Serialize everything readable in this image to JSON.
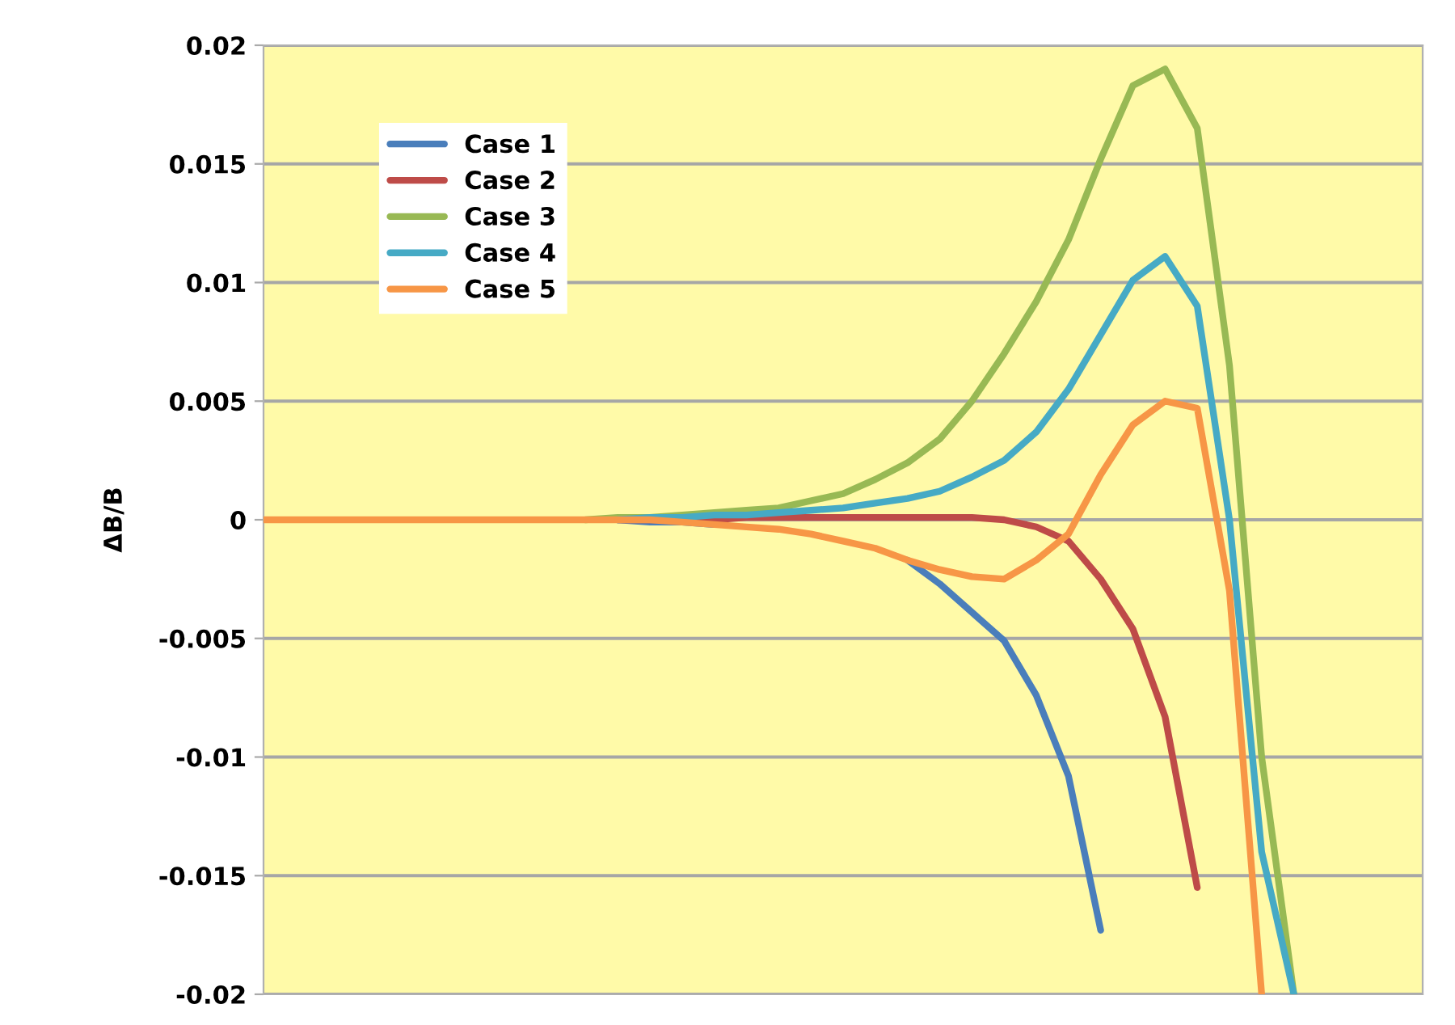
{
  "chart_data": {
    "type": "line",
    "ylabel": "ΔB/B",
    "categories": [
      null,
      null,
      null,
      null,
      null,
      null,
      null,
      null,
      null,
      null,
      null,
      null,
      null,
      null,
      null,
      null,
      null,
      null,
      null,
      null,
      null,
      null,
      null,
      null,
      null,
      null,
      null,
      null,
      null,
      null,
      null,
      null,
      null,
      null,
      null,
      null,
      null
    ],
    "series": [
      {
        "name": "Case 1",
        "color": "#4a7ebb",
        "values": [
          null,
          null,
          null,
          null,
          null,
          null,
          null,
          null,
          null,
          null,
          null,
          0,
          -0.0001,
          -0.0001,
          -0.0002,
          null,
          null,
          null,
          null,
          null,
          -0.0017,
          -0.0027,
          -0.0039,
          -0.0051,
          -0.0074,
          -0.0108,
          -0.0173,
          null,
          null,
          null,
          null,
          null,
          null,
          null,
          null,
          null,
          null
        ]
      },
      {
        "name": "Case 2",
        "color": "#be4b48",
        "values": [
          null,
          null,
          null,
          null,
          null,
          null,
          null,
          null,
          null,
          null,
          null,
          0,
          0,
          0,
          0,
          0.0001,
          0.0001,
          0.0001,
          0.0001,
          0.0001,
          0.0001,
          0.0001,
          0.0001,
          0,
          -0.0003,
          -0.0009,
          -0.0025,
          -0.0046,
          -0.0083,
          -0.0155,
          null,
          null,
          null,
          null,
          null,
          null,
          null
        ]
      },
      {
        "name": "Case 3",
        "color": "#98b954",
        "values": [
          null,
          null,
          null,
          null,
          null,
          null,
          null,
          null,
          null,
          null,
          0,
          0.0001,
          0.0001,
          0.0002,
          0.0003,
          0.0004,
          0.0005,
          0.0008,
          0.0011,
          0.0017,
          0.0024,
          0.0034,
          0.005,
          0.007,
          0.0092,
          0.0118,
          0.0152,
          0.0183,
          0.019,
          0.0165,
          0.0065,
          -0.01,
          -0.02,
          null,
          null,
          null,
          null
        ]
      },
      {
        "name": "Case 4",
        "color": "#46aac5",
        "values": [
          null,
          null,
          null,
          null,
          null,
          null,
          null,
          null,
          null,
          null,
          null,
          0,
          0.0001,
          0.0001,
          0.0002,
          0.0002,
          0.0003,
          0.0004,
          0.0005,
          0.0007,
          0.0009,
          0.0012,
          0.0018,
          0.0025,
          0.0037,
          0.0055,
          0.0078,
          0.0101,
          0.0111,
          0.009,
          0,
          -0.014,
          -0.02,
          null,
          null,
          null,
          null
        ]
      },
      {
        "name": "Case 5",
        "color": "#f79646",
        "values": [
          0,
          0,
          0,
          0,
          0,
          0,
          0,
          0,
          0,
          0,
          0,
          0,
          0,
          -0.0001,
          -0.0002,
          -0.0003,
          -0.0004,
          -0.0006,
          -0.0009,
          -0.0012,
          -0.0017,
          -0.0021,
          -0.0024,
          -0.0025,
          -0.0017,
          -0.0006,
          0.0019,
          0.004,
          0.005,
          0.0047,
          -0.003,
          -0.02,
          null,
          null,
          null,
          null,
          null
        ]
      }
    ],
    "ylim": [
      -0.02,
      0.02
    ],
    "yticks": [
      -0.02,
      -0.015,
      -0.01,
      -0.005,
      0,
      0.005,
      0.01,
      0.015,
      0.02
    ],
    "grid": "y",
    "legend": "top left",
    "marker": "none",
    "line_style": "solid",
    "tick_labels": "y"
  }
}
